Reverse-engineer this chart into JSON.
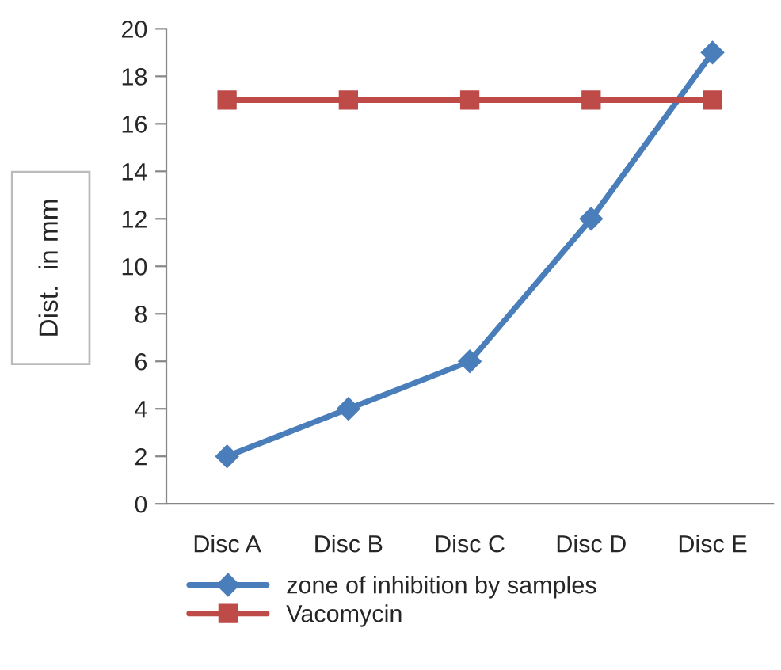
{
  "chart_data": {
    "type": "line",
    "ylabel": "Dist.  in mm",
    "categories": [
      "Disc A",
      "Disc B",
      "Disc C",
      "Disc D",
      "Disc E"
    ],
    "series": [
      {
        "name": "zone of inhibition by samples",
        "color": "#4a7ebb",
        "values": [
          2,
          4,
          6,
          12,
          19
        ],
        "marker": "diamond"
      },
      {
        "name": "Vacomycin",
        "color": "#be4b48",
        "values": [
          17,
          17,
          17,
          17,
          17
        ],
        "marker": "square"
      }
    ],
    "ylim": [
      0,
      20
    ],
    "yticks": [
      0,
      2,
      4,
      6,
      8,
      10,
      12,
      14,
      16,
      18,
      20
    ],
    "grid": false,
    "legend": "bottom",
    "line_style": "solid"
  }
}
